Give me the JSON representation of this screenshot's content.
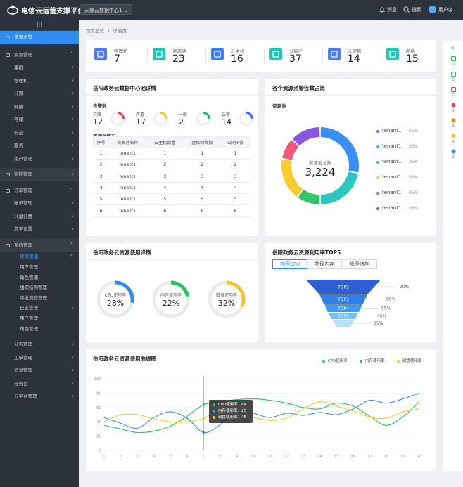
{
  "app": {
    "title": "电信云运营支撑平台",
    "datacenter": "天翼云数据中心1",
    "messages": "消息",
    "search": "搜索",
    "user": "用户名"
  },
  "sidebar": {
    "home": "首页总览",
    "resource": "资源管理",
    "resource_items": [
      "集群",
      "物理机",
      "计算",
      "网络",
      "存储",
      "安全",
      "服务",
      "租户管理"
    ],
    "monitor": "监控管理",
    "order": "订单管理",
    "order_items": [
      "账单管理",
      "计量计费",
      "费率设置"
    ],
    "system": "系统管理",
    "perm": "权限管理",
    "perm_items": [
      "用户管理",
      "角色管理",
      "组织结构管理",
      "审批流程管理"
    ],
    "log": "日志管理",
    "log_items": [
      "用户管理",
      "角色管理"
    ],
    "bottom": [
      "公告管理",
      "工单管理",
      "消息管理",
      "任务台",
      "云平台管理"
    ]
  },
  "breadcrumb": {
    "home": "首页总览",
    "sep": "/",
    "current": "详情页"
  },
  "stats": [
    {
      "label": "物理机",
      "value": "7",
      "color": "#4e7bf2",
      "icon": "server-icon"
    },
    {
      "label": "资源池",
      "value": "23",
      "color": "#27c3b4",
      "icon": "pool-icon"
    },
    {
      "label": "云主机",
      "value": "16",
      "color": "#3f7ef0",
      "icon": "cloud-icon"
    },
    {
      "label": "公网IP",
      "value": "37",
      "color": "#27c3b4",
      "icon": "atom-icon"
    },
    {
      "label": "云硬盘",
      "value": "14",
      "color": "#4e7bf2",
      "icon": "disk-icon"
    },
    {
      "label": "网络",
      "value": "15",
      "color": "#27c3b4",
      "icon": "globe-icon"
    }
  ],
  "pool": {
    "title": "岳阳政务云数据中心池详情",
    "alarm_title": "告警数",
    "alarms": [
      {
        "label": "灾难",
        "value": "12",
        "color": "#e8455a"
      },
      {
        "label": "严重",
        "value": "17",
        "color": "#f6c32b"
      },
      {
        "label": "一般",
        "value": "2",
        "color": "#22c55e"
      },
      {
        "label": "告警",
        "value": "14",
        "color": "#3b6ff2"
      }
    ],
    "overview_title": "资源池概况",
    "headers": [
      "序号",
      "资源池名称",
      "云主机数量",
      "虚拟网络数",
      "公网IP数"
    ],
    "rows": [
      [
        "1",
        "tenant1",
        "1",
        "1",
        "1"
      ],
      [
        "2",
        "tenant1",
        "2",
        "2",
        "2"
      ],
      [
        "3",
        "tenant1",
        "3",
        "3",
        "3"
      ],
      [
        "4",
        "tenant1",
        "4",
        "4",
        "4"
      ],
      [
        "5",
        "tenant1",
        "5",
        "5",
        "5"
      ],
      [
        "6",
        "tenant1",
        "6",
        "6",
        "6"
      ]
    ]
  },
  "alarm_share": {
    "title": "各个资源池警告数占比",
    "subtitle": "资源池",
    "center_label": "资源池总数",
    "center_value": "3,224",
    "legend": [
      {
        "name": "tenant1",
        "pct": "36%",
        "color": "#3a8ff2"
      },
      {
        "name": "tenant1",
        "pct": "36%",
        "color": "#2ec7c0"
      },
      {
        "name": "tenant1",
        "pct": "36%",
        "color": "#36c46b"
      },
      {
        "name": "tenant1",
        "pct": "36%",
        "color": "#f7cd2f"
      },
      {
        "name": "tenant1",
        "pct": "36%",
        "color": "#ef5a7b"
      },
      {
        "name": "tenant1",
        "pct": "36%",
        "color": "#8a55e0"
      }
    ]
  },
  "usage": {
    "title": "岳阳政务云资源使用详情",
    "gauges": [
      {
        "label": "CPU使用率",
        "pct": "28%",
        "value": 0.28,
        "color": "#2f8df2"
      },
      {
        "label": "内存使用率",
        "pct": "22%",
        "value": 0.22,
        "color": "#22c55e"
      },
      {
        "label": "磁盘使用率",
        "pct": "32%",
        "value": 0.32,
        "color": "#f6c32b"
      }
    ]
  },
  "top5": {
    "title": "岳阳政务云资源利用率TOP5",
    "tabs": [
      "物理CPU",
      "物理内存",
      "物理储存"
    ],
    "levels": [
      {
        "label": "TOP2",
        "pct": "90%"
      },
      {
        "label": "TOP3",
        "pct": "80%"
      },
      {
        "label": "TOP4",
        "pct": "55%"
      },
      {
        "label": "TOP5",
        "pct": "45%"
      },
      {
        "label": "",
        "pct": "35%"
      }
    ]
  },
  "trend": {
    "title": "岳阳政务云资源使用曲线图",
    "tooltip": {
      "cpu": "CPU使用率：64",
      "mem": "内存使用率：25",
      "disk": "磁盘使用率：45"
    }
  },
  "chart_data": {
    "type": "line",
    "x": [
      1,
      2,
      3,
      4,
      5,
      6,
      7,
      8,
      9,
      10,
      11,
      12,
      13,
      14,
      15,
      16,
      17,
      18,
      19,
      20
    ],
    "ylim": [
      0,
      100
    ],
    "yticks": [
      0,
      20,
      40,
      60,
      80,
      100
    ],
    "series": [
      {
        "name": "CPU使用率",
        "color": "#22c55e",
        "values": [
          35,
          30,
          25,
          27,
          34,
          48,
          64,
          68,
          71,
          72,
          70,
          66,
          60,
          58,
          66,
          62,
          48,
          35,
          47,
          68
        ]
      },
      {
        "name": "内存使用率",
        "color": "#3a8ff2",
        "values": [
          46,
          38,
          31,
          46,
          54,
          45,
          25,
          36,
          57,
          52,
          46,
          52,
          49,
          53,
          50,
          58,
          70,
          66,
          72,
          80
        ]
      },
      {
        "name": "磁盘使用率",
        "color": "#f6c32b",
        "values": [
          40,
          50,
          50,
          44,
          40,
          40,
          45,
          57,
          55,
          46,
          42,
          45,
          58,
          68,
          62,
          55,
          47,
          45,
          54,
          58
        ]
      }
    ]
  },
  "rail": {
    "items": [
      {
        "v": "0",
        "c": "#22c55e"
      },
      {
        "v": "0",
        "c": "#22c55e"
      },
      {
        "v": "0",
        "c": "#e8455a"
      },
      {
        "v": "3",
        "c": "#e8455a"
      },
      {
        "v": "2",
        "c": "#f28b20"
      },
      {
        "v": "0",
        "c": "#f6c32b"
      },
      {
        "v": "2",
        "c": "#2f8df2"
      }
    ]
  }
}
